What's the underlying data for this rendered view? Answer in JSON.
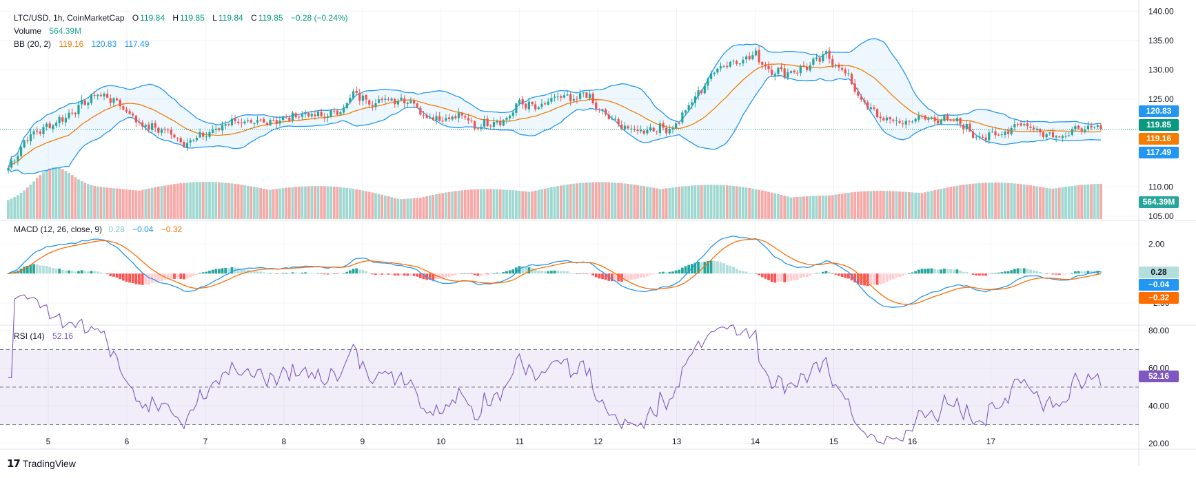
{
  "header": {
    "symbol": "LTC/USD, 1h, CoinMarketCap",
    "ohlc": [
      {
        "k": "O",
        "v": "119.84"
      },
      {
        "k": "H",
        "v": "119.85"
      },
      {
        "k": "L",
        "v": "119.84"
      },
      {
        "k": "C",
        "v": "119.85"
      }
    ],
    "change": "−0.28 (−0.24%)",
    "volume_label": "Volume",
    "volume_value": "564.39M",
    "bb_label": "BB (20, 2)",
    "bb_values": [
      "119.16",
      "120.83",
      "117.49"
    ],
    "macd_label": "MACD (12, 26, close, 9)",
    "macd_values": [
      "0.28",
      "−0.04",
      "−0.32"
    ],
    "rsi_label": "RSI (14)",
    "rsi_value": "52.16"
  },
  "badges": {
    "bb_upper": "120.83",
    "last_price": "119.85",
    "bb_basis": "119.16",
    "bb_lower": "117.49",
    "volume": "564.39M",
    "macd_hist": "0.28",
    "macd_line": "−0.04",
    "macd_signal": "−0.32",
    "rsi": "52.16"
  },
  "brand": {
    "text": "TradingView"
  },
  "colors": {
    "up": "#26a69a",
    "down": "#ef5350",
    "bb_band": "#2196f3",
    "bb_basis": "#f57c00",
    "macd_line": "#2196f3",
    "macd_signal": "#ff6d00",
    "rsi": "#7e57c2",
    "last_price": "#089981"
  },
  "chart_data": [
    {
      "type": "candlestick",
      "title": "LTC/USD, 1h, CoinMarketCap",
      "x_ticks": [
        "5",
        "6",
        "7",
        "8",
        "9",
        "10",
        "11",
        "12",
        "13",
        "14",
        "15",
        "16",
        "17"
      ],
      "y_ticks": [
        "105.00",
        "110.00",
        "125.00",
        "130.00",
        "135.00",
        "140.00"
      ],
      "y_range": [
        104.5,
        140.5
      ],
      "close_anchors": [
        [
          0,
          113.2
        ],
        [
          6,
          118.5
        ],
        [
          18,
          122
        ],
        [
          28,
          126
        ],
        [
          34,
          124.5
        ],
        [
          42,
          120.5
        ],
        [
          50,
          119.5
        ],
        [
          55,
          117.5
        ],
        [
          60,
          118.5
        ],
        [
          66,
          120
        ],
        [
          70,
          121.5
        ],
        [
          75,
          120.5
        ],
        [
          80,
          121.2
        ],
        [
          86,
          121.5
        ],
        [
          92,
          122.5
        ],
        [
          98,
          122
        ],
        [
          104,
          123
        ],
        [
          108,
          125.8
        ],
        [
          114,
          124.5
        ],
        [
          120,
          125
        ],
        [
          126,
          124.8
        ],
        [
          130,
          122.3
        ],
        [
          136,
          121.6
        ],
        [
          142,
          122.2
        ],
        [
          146,
          120.2
        ],
        [
          150,
          121
        ],
        [
          156,
          121.5
        ],
        [
          160,
          124.5
        ],
        [
          166,
          123.3
        ],
        [
          172,
          125.5
        ],
        [
          178,
          124.5
        ],
        [
          180,
          126.5
        ],
        [
          184,
          123.5
        ],
        [
          190,
          121
        ],
        [
          196,
          119.5
        ],
        [
          202,
          120
        ],
        [
          208,
          120
        ],
        [
          212,
          123
        ],
        [
          218,
          127.5
        ],
        [
          222,
          130.5
        ],
        [
          228,
          131.5
        ],
        [
          234,
          132.5
        ],
        [
          238,
          130
        ],
        [
          244,
          129.5
        ],
        [
          250,
          130.5
        ],
        [
          256,
          132.5
        ],
        [
          262,
          129.5
        ],
        [
          268,
          124
        ],
        [
          274,
          121.5
        ],
        [
          280,
          121
        ],
        [
          286,
          121.8
        ],
        [
          292,
          121.5
        ],
        [
          298,
          121
        ],
        [
          302,
          119
        ],
        [
          306,
          118.5
        ],
        [
          312,
          119.3
        ],
        [
          316,
          121
        ],
        [
          322,
          119.7
        ],
        [
          326,
          119
        ],
        [
          330,
          118.8
        ],
        [
          336,
          120
        ],
        [
          342,
          119.85
        ]
      ],
      "volume_value": "564.39M"
    },
    {
      "type": "line",
      "title": "BB (20, 2)",
      "series": [
        {
          "name": "basis",
          "value_last": 119.16
        },
        {
          "name": "upper",
          "value_last": 120.83
        },
        {
          "name": "lower",
          "value_last": 117.49
        }
      ]
    },
    {
      "type": "line",
      "title": "MACD (12, 26, close, 9)",
      "y_ticks": [
        "2.00",
        "−2.00"
      ],
      "y_range": [
        -3.4,
        3.6
      ],
      "last_values": {
        "histogram": 0.28,
        "macd": -0.04,
        "signal": -0.32
      }
    },
    {
      "type": "line",
      "title": "RSI (14)",
      "y_ticks": [
        "80.00",
        "60.00",
        "40.00",
        "20.00"
      ],
      "y_range": [
        17,
        83
      ],
      "band": [
        30,
        70
      ],
      "middle": 50,
      "last_value": 52.16
    }
  ]
}
